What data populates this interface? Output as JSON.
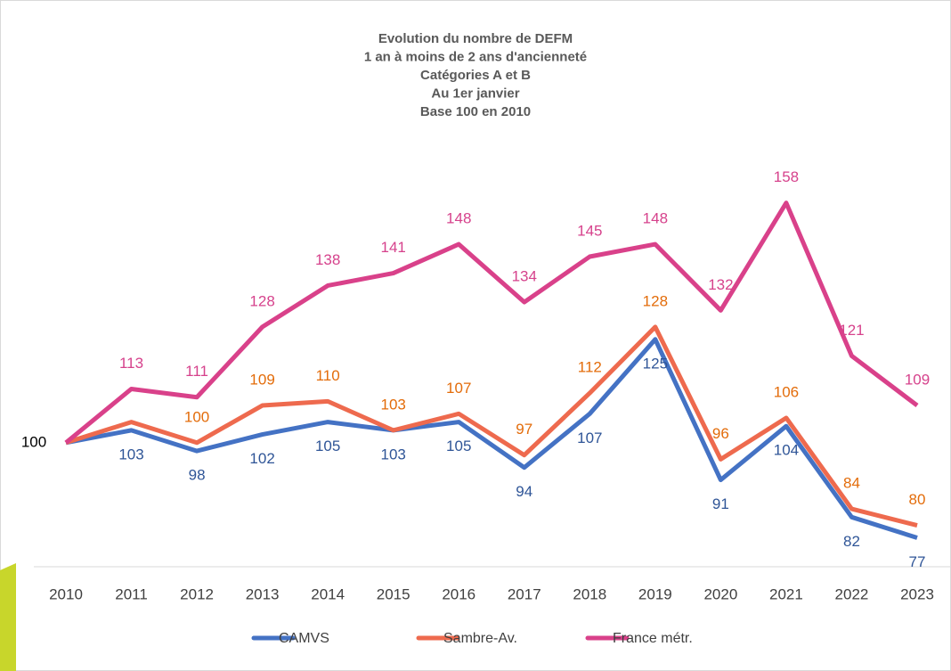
{
  "chart_data": {
    "type": "line",
    "title": [
      "Evolution du nombre de DEFM",
      "1 an à moins de 2 ans d'ancienneté",
      "Catégories A et B",
      "Au 1er janvier",
      "Base 100 en 2010"
    ],
    "categories": [
      "2010",
      "2011",
      "2012",
      "2013",
      "2014",
      "2015",
      "2016",
      "2017",
      "2018",
      "2019",
      "2020",
      "2021",
      "2022",
      "2023"
    ],
    "series": [
      {
        "name": "CAMVS",
        "color": "#4472c4",
        "label_color": "#2f5597",
        "label_position": "below",
        "values": [
          100,
          103,
          98,
          102,
          105,
          103,
          105,
          94,
          107,
          125,
          91,
          104,
          82,
          77
        ],
        "value_labels": [
          "100",
          "103",
          "98",
          "102",
          "105",
          "103",
          "105",
          "94",
          "107",
          "125",
          "91",
          "104",
          "82",
          "77"
        ]
      },
      {
        "name": "Sambre-Av.",
        "color": "#ee6a4e",
        "label_color": "#e36c0a",
        "label_position": "above",
        "values": [
          100,
          105,
          100,
          109,
          110,
          103,
          107,
          97,
          112,
          128,
          96,
          106,
          84,
          80
        ],
        "value_labels": [
          null,
          null,
          "100",
          "109",
          "110",
          "103",
          "107",
          "97",
          "112",
          "128",
          "96",
          "106",
          "84",
          "80"
        ]
      },
      {
        "name": "France métr.",
        "color": "#d9418a",
        "label_color": "#d6428c",
        "label_position": "above",
        "values": [
          100,
          113,
          111,
          128,
          138,
          141,
          148,
          134,
          145,
          148,
          132,
          158,
          121,
          109
        ],
        "value_labels": [
          null,
          "113",
          "111",
          "128",
          "138",
          "141",
          "148",
          "134",
          "145",
          "148",
          "132",
          "158",
          "121",
          "109"
        ]
      }
    ],
    "ylim": [
      70,
      170
    ],
    "legend": "bottom"
  }
}
